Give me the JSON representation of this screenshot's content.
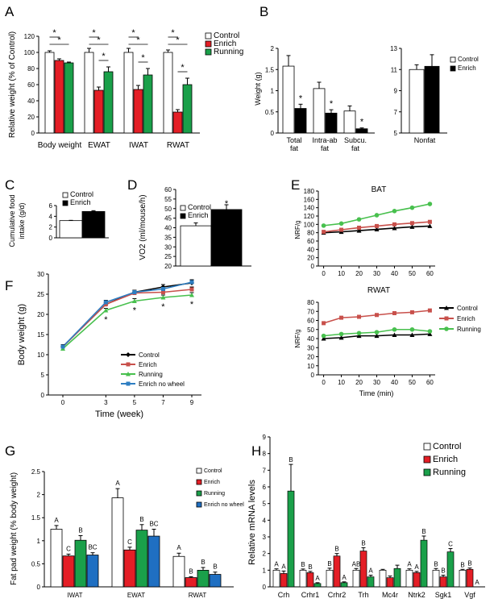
{
  "colors": {
    "control": "#ffffff",
    "enrich": "#e41e26",
    "running": "#1aa04a",
    "enrich_no_wheel": "#1f6fc2",
    "black": "#000000",
    "line_control": "#000000",
    "line_enrich": "#c8504b",
    "line_running": "#48c04e",
    "line_enrich_no_wheel": "#2e7ec2"
  },
  "chart_data": [
    {
      "id": "A",
      "panel_label": "A",
      "type": "bar",
      "ylabel": "Relative weight (% of Control)",
      "ylim": [
        0,
        120
      ],
      "yticks": [
        0,
        20,
        40,
        60,
        80,
        100,
        120
      ],
      "categories": [
        "Body weight",
        "EWAT",
        "IWAT",
        "RWAT"
      ],
      "legend": [
        "Control",
        "Enrich",
        "Running"
      ],
      "legend_position": "top-right",
      "series": [
        {
          "name": "Control",
          "values": [
            100,
            100,
            100,
            100
          ],
          "errors": [
            2,
            5,
            5,
            3
          ]
        },
        {
          "name": "Enrich",
          "values": [
            90,
            53,
            54,
            26
          ],
          "errors": [
            2,
            4,
            5,
            3
          ]
        },
        {
          "name": "Running",
          "values": [
            87,
            76,
            72,
            60
          ],
          "errors": [
            1,
            6,
            8,
            8
          ]
        }
      ],
      "significance_marker": "*"
    },
    {
      "id": "B1",
      "panel_label": "B",
      "type": "bar",
      "ylabel": "Weight (g)",
      "ylim": [
        0,
        2
      ],
      "yticks": [
        0,
        0.5,
        1,
        1.5,
        2
      ],
      "ytick_labels": [
        "0",
        "0.5",
        "1",
        "1.5",
        "2"
      ],
      "categories": [
        "Total fat",
        "Intra-ab fat",
        "Subcu. fat"
      ],
      "category_lines": [
        [
          "Total",
          "fat"
        ],
        [
          "Intra-ab",
          "fat"
        ],
        [
          "Subcu.",
          "fat"
        ]
      ],
      "series": [
        {
          "name": "Control",
          "values": [
            1.58,
            1.05,
            0.52
          ],
          "errors": [
            0.25,
            0.15,
            0.12
          ]
        },
        {
          "name": "Enrich",
          "values": [
            0.58,
            0.47,
            0.1
          ],
          "errors": [
            0.1,
            0.08,
            0.02
          ]
        }
      ],
      "significance_marker": "*"
    },
    {
      "id": "B2",
      "type": "bar",
      "ylim": [
        5,
        13
      ],
      "yticks": [
        5,
        7,
        9,
        11,
        13
      ],
      "categories": [
        "Nonfat"
      ],
      "legend": [
        "Control",
        "Enrich"
      ],
      "legend_position": "top-right",
      "series": [
        {
          "name": "Control",
          "values": [
            11.0
          ],
          "errors": [
            0.45
          ]
        },
        {
          "name": "Enrich",
          "values": [
            11.3
          ],
          "errors": [
            1.1
          ]
        }
      ]
    },
    {
      "id": "C",
      "panel_label": "C",
      "type": "bar",
      "ylabel": "Cumulative food intake (g/d)",
      "ylabel_lines": [
        "Cumulative food",
        "intake (g/d)"
      ],
      "ylim": [
        0,
        6
      ],
      "yticks": [
        0,
        2,
        4,
        6
      ],
      "legend": [
        "Control",
        "Enrich"
      ],
      "legend_position": "top-left",
      "series": [
        {
          "name": "Control",
          "values": [
            3.2
          ],
          "errors": [
            0.05
          ]
        },
        {
          "name": "Enrich",
          "values": [
            4.9
          ],
          "errors": [
            0.15
          ]
        }
      ],
      "significance_marker": "*"
    },
    {
      "id": "D",
      "panel_label": "D",
      "type": "bar",
      "ylabel": "VO2 (ml/mouse/h)",
      "ylim": [
        20,
        60
      ],
      "yticks": [
        20,
        25,
        30,
        35,
        40,
        45,
        50,
        55,
        60
      ],
      "legend": [
        "Control",
        "Enrich"
      ],
      "legend_position": "top-left",
      "series": [
        {
          "name": "Control",
          "values": [
            41
          ],
          "errors": [
            1.5
          ]
        },
        {
          "name": "Enrich",
          "values": [
            49.5
          ],
          "errors": [
            2.5
          ]
        }
      ],
      "significance_marker": "*"
    },
    {
      "id": "E1",
      "panel_label": "E",
      "type": "line",
      "title": "BAT",
      "ylabel": "NRF/g",
      "x": [
        0,
        10,
        20,
        30,
        40,
        50,
        60
      ],
      "ylim": [
        0,
        180
      ],
      "yticks": [
        0,
        20,
        40,
        60,
        80,
        100,
        120,
        140,
        160,
        180
      ],
      "series": [
        {
          "name": "Control",
          "values": [
            80,
            82,
            85,
            88,
            91,
            94,
            96
          ]
        },
        {
          "name": "Enrich",
          "values": [
            82,
            87,
            92,
            96,
            100,
            103,
            106
          ]
        },
        {
          "name": "Running",
          "values": [
            97,
            102,
            112,
            122,
            132,
            140,
            149
          ]
        }
      ]
    },
    {
      "id": "E2",
      "type": "line",
      "title": "RWAT",
      "ylabel": "NRF/g",
      "xlabel": "Time (min)",
      "x": [
        0,
        10,
        20,
        30,
        40,
        50,
        60
      ],
      "ylim": [
        0,
        80
      ],
      "yticks": [
        0,
        10,
        20,
        30,
        40,
        50,
        60,
        70,
        80
      ],
      "legend": [
        "Control",
        "Enrich",
        "Running"
      ],
      "legend_position": "right",
      "series": [
        {
          "name": "Control",
          "values": [
            40,
            41,
            43,
            43,
            44,
            44,
            45
          ]
        },
        {
          "name": "Enrich",
          "values": [
            57,
            63,
            64,
            66,
            68,
            69,
            71
          ]
        },
        {
          "name": "Running",
          "values": [
            43,
            45,
            46,
            47,
            50,
            50,
            48
          ]
        }
      ]
    },
    {
      "id": "F",
      "panel_label": "F",
      "type": "line",
      "ylabel": "Body weight (g)",
      "xlabel": "Time (week)",
      "x": [
        0,
        3,
        5,
        7,
        9
      ],
      "ylim": [
        0,
        30
      ],
      "yticks": [
        0,
        5,
        10,
        15,
        20,
        25,
        30
      ],
      "legend": [
        "Control",
        "Enrich",
        "Running",
        "Enrich no wheel"
      ],
      "legend_position": "bottom-right",
      "series": [
        {
          "name": "Control",
          "values": [
            12,
            22.5,
            25.5,
            26.8,
            27.8
          ],
          "errors": [
            0.5,
            0.5,
            0.5,
            0.6,
            0.6
          ]
        },
        {
          "name": "Enrich",
          "values": [
            12,
            22.5,
            25.3,
            25.5,
            26.2
          ],
          "errors": [
            0.5,
            0.5,
            0.5,
            0.6,
            0.6
          ]
        },
        {
          "name": "Running",
          "values": [
            11.5,
            21,
            23.3,
            24.2,
            24.8
          ],
          "errors": [
            0.5,
            0.5,
            0.6,
            0.6,
            0.6
          ]
        },
        {
          "name": "Enrich no wheel",
          "values": [
            12,
            23,
            25.5,
            26.3,
            28
          ],
          "errors": [
            0.5,
            0.5,
            0.5,
            0.6,
            0.6
          ]
        }
      ],
      "significance_marker": "*"
    },
    {
      "id": "G",
      "panel_label": "G",
      "type": "bar",
      "ylabel": "Fat pad weight (% body weight)",
      "ylim": [
        0,
        2.5
      ],
      "yticks": [
        0,
        0.5,
        1,
        1.5,
        2,
        2.5
      ],
      "ytick_labels": [
        "0",
        "0.5",
        "1",
        "1.5",
        "2",
        "2.5"
      ],
      "categories": [
        "IWAT",
        "EWAT",
        "RWAT"
      ],
      "legend": [
        "Control",
        "Enrich",
        "Running",
        "Enrich no wheel"
      ],
      "legend_position": "top-right",
      "series": [
        {
          "name": "Control",
          "values": [
            1.25,
            1.93,
            0.66
          ],
          "errors": [
            0.08,
            0.2,
            0.07
          ],
          "letters": [
            "A",
            "A",
            "A"
          ]
        },
        {
          "name": "Enrich",
          "values": [
            0.67,
            0.8,
            0.2
          ],
          "errors": [
            0.04,
            0.06,
            0.02
          ],
          "letters": [
            "C",
            "C",
            "B"
          ]
        },
        {
          "name": "Running",
          "values": [
            1.01,
            1.23,
            0.36
          ],
          "errors": [
            0.1,
            0.12,
            0.06
          ],
          "letters": [
            "B",
            "B",
            "B"
          ]
        },
        {
          "name": "Enrich no wheel",
          "values": [
            0.69,
            1.1,
            0.27
          ],
          "errors": [
            0.05,
            0.15,
            0.05
          ],
          "letters": [
            "BC",
            "BC",
            "B"
          ]
        }
      ]
    },
    {
      "id": "H",
      "panel_label": "H",
      "type": "bar",
      "ylabel": "Relative mRNA levels",
      "ylim": [
        0,
        9
      ],
      "yticks": [
        0,
        1,
        2,
        3,
        4,
        5,
        6,
        7,
        8,
        9
      ],
      "categories": [
        "Crh",
        "Crhr1",
        "Crhr2",
        "Trh",
        "Mc4r",
        "Ntrk2",
        "Sgk1",
        "Vgf"
      ],
      "legend": [
        "Control",
        "Enrich",
        "Running"
      ],
      "legend_position": "top-right",
      "series": [
        {
          "name": "Control",
          "values": [
            1,
            1,
            1,
            1,
            1,
            1,
            1,
            1
          ],
          "errors": [
            0.08,
            0.07,
            0.12,
            0.1,
            0.05,
            0.08,
            0.1,
            0.05
          ],
          "letters": [
            "A",
            "B",
            "B",
            "AB",
            "",
            "A",
            "B",
            "B"
          ]
        },
        {
          "name": "Enrich",
          "values": [
            0.8,
            0.85,
            1.85,
            2.15,
            0.55,
            0.85,
            0.6,
            1.05
          ],
          "errors": [
            0.15,
            0.08,
            0.15,
            0.2,
            0.1,
            0.08,
            0.1,
            0.08
          ],
          "letters": [
            "A",
            "B",
            "B",
            "B",
            "",
            "A",
            "B",
            "B"
          ]
        },
        {
          "name": "Running",
          "values": [
            5.75,
            0.2,
            0.25,
            0.6,
            1.1,
            2.8,
            2.1,
            0
          ],
          "errors": [
            1.6,
            0.05,
            0.05,
            0.1,
            0.2,
            0.25,
            0.2,
            0
          ],
          "letters": [
            "B",
            "A",
            "A",
            "A",
            "",
            "B",
            "C",
            "A"
          ]
        }
      ]
    }
  ]
}
